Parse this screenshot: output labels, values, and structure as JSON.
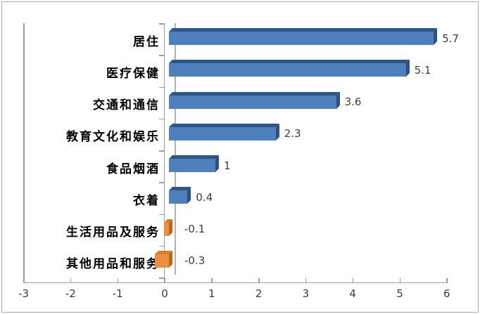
{
  "chart_data": {
    "type": "bar",
    "orientation": "horizontal",
    "style": "3d",
    "title": "",
    "legend": "none",
    "gridlines": false,
    "categories": [
      "居住",
      "医疗保健",
      "交通和通信",
      "教育文化和娱乐",
      "食品烟酒",
      "衣着",
      "生活用品及服务",
      "其他用品和服务"
    ],
    "values": [
      5.7,
      5.1,
      3.6,
      2.3,
      1,
      0.4,
      -0.1,
      -0.3
    ],
    "data_labels": [
      "5.7",
      "5.1",
      "3.6",
      "2.3",
      "1",
      "0.4",
      "-0.1",
      "-0.3"
    ],
    "x_axis": {
      "ticks": [
        "-3",
        "-2",
        "-1",
        "0",
        "1",
        "2",
        "3",
        "4",
        "5",
        "6"
      ],
      "tick_values": [
        -3,
        -2,
        -1,
        0,
        1,
        2,
        3,
        4,
        5,
        6
      ],
      "range": [
        -3,
        6
      ]
    },
    "colors": {
      "bar_positive": "#4e80bd",
      "bar_positive_top": "#2f5586",
      "bar_positive_side": "#2c5080",
      "bar_negative": "#ee8e41",
      "bar_negative_top": "#e07b28",
      "bar_negative_side": "#bf6318",
      "axis_line": "#9c9c9c",
      "wall_line": "#b2b2b2",
      "label_text": "#3d3d3d",
      "category_text": "#000000",
      "border": "#ababab"
    }
  }
}
